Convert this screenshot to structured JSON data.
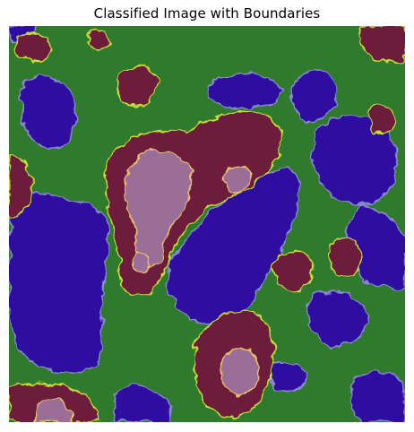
{
  "title": "Classified Image with Boundaries",
  "classes": [
    {
      "class_id": 0,
      "color": "#2e0aa0"
    },
    {
      "class_id": 1,
      "color": "#2f7a2c"
    },
    {
      "class_id": 2,
      "color": "#6e1a3a"
    },
    {
      "class_id": 3,
      "color": "#9a6e96"
    }
  ],
  "boundary_colors": {
    "water_land": "#8a8ad0",
    "land_high": "#c8e03a",
    "high_peak": "#e8c070"
  }
}
